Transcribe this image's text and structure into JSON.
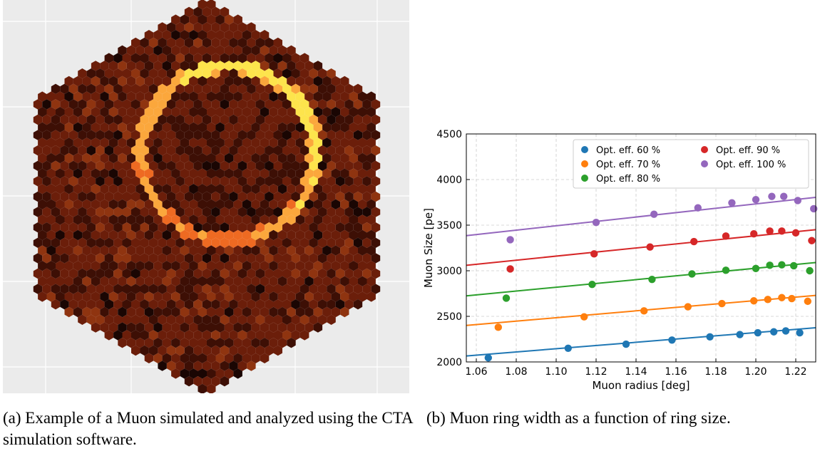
{
  "figure": {
    "caption_a": "(a) Example of a Muon simulated and analyzed using the CTA simulation software.",
    "caption_b": "(b) Muon ring width as a function of ring size."
  },
  "camera_image": {
    "colormap": [
      "#1a0603",
      "#3d0f05",
      "#6b1e0a",
      "#8f3410",
      "#c0401c",
      "#ee6a22",
      "#fba73c",
      "#fde44c",
      "#ffffff"
    ],
    "background": "#ebebeb"
  },
  "chart_data": {
    "type": "scatter",
    "title": "",
    "xlabel": "Muon radius [deg]",
    "ylabel": "Muon Size [pe]",
    "xlim": [
      1.055,
      1.23
    ],
    "ylim": [
      2000,
      4500
    ],
    "xticks": [
      "1.06",
      "1.08",
      "1.10",
      "1.12",
      "1.14",
      "1.16",
      "1.18",
      "1.20",
      "1.22"
    ],
    "yticks": [
      "2000",
      "2500",
      "3000",
      "3500",
      "4000",
      "4500"
    ],
    "grid": true,
    "legend_position": "top-right",
    "x_shared": [
      1.066,
      1.106,
      1.135,
      1.158,
      1.177,
      1.192,
      1.201,
      1.209,
      1.215,
      1.222
    ],
    "series": [
      {
        "name": "Opt. eff. 60 %",
        "color": "#1f77b4",
        "x": [
          1.066,
          1.106,
          1.135,
          1.158,
          1.177,
          1.192,
          1.201,
          1.209,
          1.215,
          1.222
        ],
        "y": [
          2045,
          2150,
          2195,
          2240,
          2275,
          2300,
          2320,
          2330,
          2340,
          2320
        ],
        "fit": [
          2065,
          2375
        ]
      },
      {
        "name": "Opt. eff. 70 %",
        "color": "#ff7f0e",
        "x": [
          1.071,
          1.114,
          1.144,
          1.166,
          1.183,
          1.199,
          1.206,
          1.213,
          1.218,
          1.226
        ],
        "y": [
          2380,
          2495,
          2560,
          2605,
          2640,
          2670,
          2685,
          2705,
          2695,
          2665
        ],
        "fit": [
          2400,
          2730
        ]
      },
      {
        "name": "Opt. eff. 80 %",
        "color": "#2ca02c",
        "x": [
          1.075,
          1.118,
          1.148,
          1.168,
          1.185,
          1.2,
          1.207,
          1.213,
          1.219,
          1.227
        ],
        "y": [
          2700,
          2850,
          2905,
          2965,
          3005,
          3025,
          3060,
          3065,
          3055,
          3000
        ],
        "fit": [
          2725,
          3090
        ]
      },
      {
        "name": "Opt. eff. 90 %",
        "color": "#d62728",
        "x": [
          1.077,
          1.119,
          1.147,
          1.169,
          1.185,
          1.199,
          1.207,
          1.213,
          1.22,
          1.228
        ],
        "y": [
          3020,
          3185,
          3260,
          3320,
          3380,
          3405,
          3435,
          3435,
          3415,
          3330
        ],
        "fit": [
          3060,
          3450
        ]
      },
      {
        "name": "Opt. eff. 100 %",
        "color": "#9467bd",
        "x": [
          1.077,
          1.12,
          1.149,
          1.171,
          1.188,
          1.2,
          1.208,
          1.214,
          1.221,
          1.229
        ],
        "y": [
          3340,
          3530,
          3620,
          3690,
          3745,
          3780,
          3815,
          3815,
          3770,
          3680
        ],
        "fit": [
          3385,
          3805
        ]
      }
    ]
  }
}
